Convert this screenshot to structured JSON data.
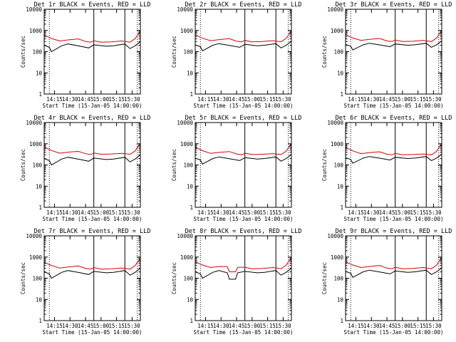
{
  "chart_data": [
    {
      "type": "line",
      "title": "Det 1r BLACK = Events, RED = LLD",
      "xlabel": "Start Time (15-Jan-05 14:00:00)",
      "ylabel": "Counts/sec",
      "yscale": "log",
      "ylim": [
        1,
        10000
      ],
      "xlim": [
        "14:05",
        "15:38"
      ],
      "xticks": [
        "14:15",
        "14:30",
        "14:45",
        "15:00",
        "15:15",
        "15:30"
      ],
      "yticks": [
        "1",
        "10",
        "100",
        "1000",
        "10000"
      ],
      "vertical_markers": {
        "dotted": [
          "14:10",
          "15:35"
        ],
        "solid": [
          "14:53",
          "15:23"
        ]
      },
      "series": [
        {
          "name": "Events",
          "color": "#000000",
          "x": [
            "14:05",
            "14:10",
            "14:12",
            "14:22",
            "14:28",
            "14:40",
            "14:48",
            "14:53",
            "15:05",
            "15:12",
            "15:23",
            "15:28",
            "15:33",
            "15:36",
            "15:38"
          ],
          "y": [
            200,
            160,
            100,
            190,
            230,
            180,
            150,
            210,
            180,
            190,
            230,
            140,
            190,
            250,
            300
          ]
        },
        {
          "name": "LLD",
          "color": "#dd0000",
          "x": [
            "14:05",
            "14:12",
            "14:20",
            "14:28",
            "14:38",
            "14:45",
            "14:50",
            "14:53",
            "15:00",
            "15:10",
            "15:20",
            "15:28",
            "15:33",
            "15:36",
            "15:38"
          ],
          "y": [
            600,
            420,
            320,
            360,
            400,
            300,
            280,
            330,
            280,
            290,
            320,
            280,
            420,
            700,
            900
          ]
        }
      ]
    },
    {
      "type": "line",
      "title": "Det 2r BLACK = Events, RED = LLD",
      "xlabel": "Start Time (15-Jan-05 14:00:00)",
      "ylabel": "Counts/sec",
      "yscale": "log",
      "ylim": [
        1,
        10000
      ],
      "xlim": [
        "14:05",
        "15:38"
      ],
      "xticks": [
        "14:15",
        "14:30",
        "14:45",
        "15:00",
        "15:15",
        "15:30"
      ],
      "yticks": [
        "1",
        "10",
        "100",
        "1000",
        "10000"
      ],
      "vertical_markers": {
        "dotted": [
          "14:10",
          "15:35"
        ],
        "solid": [
          "14:53",
          "15:23"
        ]
      },
      "series": [
        {
          "name": "Events",
          "color": "#000000",
          "x": [
            "14:05",
            "14:10",
            "14:12",
            "14:22",
            "14:28",
            "14:40",
            "14:48",
            "14:53",
            "15:05",
            "15:12",
            "15:23",
            "15:28",
            "15:33",
            "15:36",
            "15:38"
          ],
          "y": [
            210,
            170,
            110,
            200,
            240,
            190,
            160,
            220,
            190,
            200,
            240,
            150,
            200,
            260,
            310
          ]
        },
        {
          "name": "LLD",
          "color": "#dd0000",
          "x": [
            "14:05",
            "14:12",
            "14:20",
            "14:28",
            "14:38",
            "14:45",
            "14:50",
            "14:53",
            "15:00",
            "15:10",
            "15:20",
            "15:28",
            "15:33",
            "15:36",
            "15:38"
          ],
          "y": [
            620,
            430,
            330,
            370,
            410,
            310,
            290,
            340,
            290,
            300,
            330,
            290,
            430,
            720,
            920
          ]
        }
      ]
    },
    {
      "type": "line",
      "title": "Det 3r BLACK = Events, RED = LLD",
      "xlabel": "Start Time (15-Jan-05 14:00:00)",
      "ylabel": "Counts/sec",
      "yscale": "log",
      "ylim": [
        1,
        10000
      ],
      "xlim": [
        "14:05",
        "15:38"
      ],
      "xticks": [
        "14:15",
        "14:30",
        "14:45",
        "15:00",
        "15:15",
        "15:30"
      ],
      "yticks": [
        "1",
        "10",
        "100",
        "1000",
        "10000"
      ],
      "vertical_markers": {
        "dotted": [
          "14:10",
          "15:35"
        ],
        "solid": [
          "14:53",
          "15:23"
        ]
      },
      "series": [
        {
          "name": "Events",
          "color": "#000000",
          "x": [
            "14:05",
            "14:10",
            "14:12",
            "14:22",
            "14:28",
            "14:40",
            "14:48",
            "14:53",
            "15:05",
            "15:12",
            "15:23",
            "15:28",
            "15:33",
            "15:36",
            "15:38"
          ],
          "y": [
            220,
            180,
            120,
            210,
            250,
            200,
            170,
            230,
            200,
            210,
            250,
            160,
            210,
            270,
            320
          ]
        },
        {
          "name": "LLD",
          "color": "#dd0000",
          "x": [
            "14:05",
            "14:12",
            "14:20",
            "14:28",
            "14:38",
            "14:45",
            "14:50",
            "14:53",
            "15:00",
            "15:10",
            "15:20",
            "15:28",
            "15:33",
            "15:36",
            "15:38"
          ],
          "y": [
            640,
            440,
            340,
            380,
            420,
            320,
            300,
            350,
            300,
            310,
            340,
            300,
            440,
            740,
            940
          ]
        }
      ]
    },
    {
      "type": "line",
      "title": "Det 4r BLACK = Events, RED = LLD",
      "xlabel": "Start Time (15-Jan-05 14:00:00)",
      "ylabel": "Counts/sec",
      "yscale": "log",
      "ylim": [
        1,
        10000
      ],
      "xlim": [
        "14:05",
        "15:38"
      ],
      "xticks": [
        "14:15",
        "14:30",
        "14:45",
        "15:00",
        "15:15",
        "15:30"
      ],
      "yticks": [
        "1",
        "10",
        "100",
        "1000",
        "10000"
      ],
      "vertical_markers": {
        "dotted": [
          "14:10",
          "15:35"
        ],
        "solid": [
          "14:53",
          "15:23"
        ]
      },
      "series": [
        {
          "name": "Events",
          "color": "#000000",
          "x": [
            "14:05",
            "14:10",
            "14:12",
            "14:22",
            "14:28",
            "14:40",
            "14:48",
            "14:53",
            "15:05",
            "15:12",
            "15:23",
            "15:28",
            "15:33",
            "15:36",
            "15:38"
          ],
          "y": [
            200,
            160,
            100,
            190,
            230,
            180,
            150,
            210,
            180,
            190,
            230,
            140,
            190,
            250,
            300
          ]
        },
        {
          "name": "LLD",
          "color": "#dd0000",
          "x": [
            "14:05",
            "14:12",
            "14:20",
            "14:28",
            "14:38",
            "14:45",
            "14:50",
            "14:53",
            "15:00",
            "15:10",
            "15:20",
            "15:28",
            "15:33",
            "15:36",
            "15:38"
          ],
          "y": [
            700,
            480,
            360,
            400,
            440,
            340,
            310,
            370,
            320,
            330,
            350,
            320,
            460,
            800,
            1000
          ]
        }
      ]
    },
    {
      "type": "line",
      "title": "Det 5r BLACK = Events, RED = LLD",
      "xlabel": "Start Time (15-Jan-05 14:00:00)",
      "ylabel": "Counts/sec",
      "yscale": "log",
      "ylim": [
        1,
        10000
      ],
      "xlim": [
        "14:05",
        "15:38"
      ],
      "xticks": [
        "14:15",
        "14:30",
        "14:45",
        "15:00",
        "15:15",
        "15:30"
      ],
      "yticks": [
        "1",
        "10",
        "100",
        "1000",
        "10000"
      ],
      "vertical_markers": {
        "dotted": [
          "14:10",
          "15:35"
        ],
        "solid": [
          "14:53",
          "15:23"
        ]
      },
      "series": [
        {
          "name": "Events",
          "color": "#000000",
          "x": [
            "14:05",
            "14:10",
            "14:12",
            "14:22",
            "14:28",
            "14:40",
            "14:48",
            "14:53",
            "15:05",
            "15:12",
            "15:23",
            "15:28",
            "15:33",
            "15:36",
            "15:38"
          ],
          "y": [
            210,
            170,
            110,
            200,
            240,
            190,
            160,
            220,
            190,
            200,
            240,
            150,
            200,
            260,
            310
          ]
        },
        {
          "name": "LLD",
          "color": "#dd0000",
          "x": [
            "14:05",
            "14:12",
            "14:20",
            "14:28",
            "14:38",
            "14:45",
            "14:50",
            "14:53",
            "15:00",
            "15:10",
            "15:20",
            "15:28",
            "15:33",
            "15:36",
            "15:38"
          ],
          "y": [
            680,
            470,
            350,
            390,
            430,
            330,
            300,
            360,
            310,
            320,
            340,
            310,
            450,
            780,
            980
          ]
        }
      ]
    },
    {
      "type": "line",
      "title": "Det 6r BLACK = Events, RED = LLD",
      "xlabel": "Start Time (15-Jan-05 14:00:00)",
      "ylabel": "Counts/sec",
      "yscale": "log",
      "ylim": [
        1,
        10000
      ],
      "xlim": [
        "14:05",
        "15:38"
      ],
      "xticks": [
        "14:15",
        "14:30",
        "14:45",
        "15:00",
        "15:15",
        "15:30"
      ],
      "yticks": [
        "1",
        "10",
        "100",
        "1000",
        "10000"
      ],
      "vertical_markers": {
        "dotted": [
          "14:10",
          "15:35"
        ],
        "solid": [
          "14:53",
          "15:23"
        ]
      },
      "series": [
        {
          "name": "Events",
          "color": "#000000",
          "x": [
            "14:05",
            "14:10",
            "14:12",
            "14:22",
            "14:28",
            "14:40",
            "14:48",
            "14:53",
            "15:05",
            "15:12",
            "15:23",
            "15:28",
            "15:33",
            "15:36",
            "15:38"
          ],
          "y": [
            220,
            180,
            120,
            210,
            250,
            200,
            170,
            230,
            200,
            210,
            250,
            160,
            210,
            270,
            320
          ]
        },
        {
          "name": "LLD",
          "color": "#dd0000",
          "x": [
            "14:05",
            "14:12",
            "14:20",
            "14:28",
            "14:38",
            "14:45",
            "14:50",
            "14:53",
            "15:00",
            "15:10",
            "15:20",
            "15:28",
            "15:33",
            "15:36",
            "15:38"
          ],
          "y": [
            660,
            460,
            340,
            380,
            420,
            320,
            300,
            350,
            300,
            310,
            330,
            300,
            440,
            760,
            960
          ]
        }
      ]
    },
    {
      "type": "line",
      "title": "Det 7r BLACK = Events, RED = LLD",
      "xlabel": "Start Time (15-Jan-05 14:00:00)",
      "ylabel": "Counts/sec",
      "yscale": "log",
      "ylim": [
        1,
        10000
      ],
      "xlim": [
        "14:05",
        "15:38"
      ],
      "xticks": [
        "14:15",
        "14:30",
        "14:45",
        "15:00",
        "15:15",
        "15:30"
      ],
      "yticks": [
        "1",
        "10",
        "100",
        "1000",
        "10000"
      ],
      "vertical_markers": {
        "dotted": [
          "14:10",
          "15:35"
        ],
        "solid": [
          "14:53",
          "15:23"
        ]
      },
      "series": [
        {
          "name": "Events",
          "color": "#000000",
          "x": [
            "14:05",
            "14:10",
            "14:12",
            "14:22",
            "14:28",
            "14:40",
            "14:48",
            "14:53",
            "15:05",
            "15:12",
            "15:23",
            "15:28",
            "15:33",
            "15:36",
            "15:38"
          ],
          "y": [
            200,
            160,
            100,
            190,
            230,
            180,
            150,
            210,
            180,
            190,
            230,
            140,
            190,
            250,
            300
          ]
        },
        {
          "name": "LLD",
          "color": "#dd0000",
          "x": [
            "14:05",
            "14:12",
            "14:20",
            "14:28",
            "14:38",
            "14:45",
            "14:50",
            "14:53",
            "15:00",
            "15:10",
            "15:20",
            "15:28",
            "15:33",
            "15:36",
            "15:38"
          ],
          "y": [
            560,
            400,
            300,
            340,
            380,
            290,
            270,
            320,
            270,
            280,
            300,
            270,
            400,
            650,
            850
          ]
        }
      ]
    },
    {
      "type": "line",
      "title": "Det 8r BLACK = Events, RED = LLD",
      "xlabel": "Start Time (15-Jan-05 14:00:00)",
      "ylabel": "Counts/sec",
      "yscale": "log",
      "ylim": [
        1,
        10000
      ],
      "xlim": [
        "14:05",
        "15:38"
      ],
      "xticks": [
        "14:15",
        "14:30",
        "14:45",
        "15:00",
        "15:15",
        "15:30"
      ],
      "yticks": [
        "1",
        "10",
        "100",
        "1000",
        "10000"
      ],
      "vertical_markers": {
        "dotted": [
          "14:10",
          "15:35"
        ],
        "solid": [
          "14:53",
          "15:23"
        ]
      },
      "series": [
        {
          "name": "Events",
          "color": "#000000",
          "x": [
            "14:05",
            "14:10",
            "14:12",
            "14:22",
            "14:28",
            "14:36",
            "14:38",
            "14:44",
            "14:46",
            "14:53",
            "15:05",
            "15:12",
            "15:23",
            "15:28",
            "15:33",
            "15:36",
            "15:38"
          ],
          "y": [
            200,
            160,
            100,
            190,
            230,
            180,
            90,
            90,
            180,
            210,
            180,
            190,
            230,
            140,
            190,
            250,
            300
          ]
        },
        {
          "name": "LLD",
          "color": "#dd0000",
          "x": [
            "14:05",
            "14:12",
            "14:20",
            "14:28",
            "14:36",
            "14:38",
            "14:44",
            "14:46",
            "14:53",
            "15:00",
            "15:10",
            "15:20",
            "15:28",
            "15:33",
            "15:36",
            "15:38"
          ],
          "y": [
            600,
            420,
            320,
            360,
            350,
            200,
            200,
            330,
            330,
            280,
            290,
            320,
            280,
            420,
            700,
            900
          ]
        }
      ]
    },
    {
      "type": "line",
      "title": "Det 9r BLACK = Events, RED = LLD",
      "xlabel": "Start Time (15-Jan-05 14:00:00)",
      "ylabel": "Counts/sec",
      "yscale": "log",
      "ylim": [
        1,
        10000
      ],
      "xlim": [
        "14:05",
        "15:38"
      ],
      "xticks": [
        "14:15",
        "14:30",
        "14:45",
        "15:00",
        "15:15",
        "15:30"
      ],
      "yticks": [
        "1",
        "10",
        "100",
        "1000",
        "10000"
      ],
      "vertical_markers": {
        "dotted": [
          "14:10",
          "15:35"
        ],
        "solid": [
          "14:53",
          "15:23"
        ]
      },
      "series": [
        {
          "name": "Events",
          "color": "#000000",
          "x": [
            "14:05",
            "14:10",
            "14:12",
            "14:22",
            "14:28",
            "14:40",
            "14:48",
            "14:53",
            "15:05",
            "15:12",
            "15:23",
            "15:28",
            "15:33",
            "15:36",
            "15:38"
          ],
          "y": [
            210,
            170,
            110,
            200,
            240,
            190,
            160,
            220,
            190,
            200,
            240,
            150,
            200,
            260,
            310
          ]
        },
        {
          "name": "LLD",
          "color": "#dd0000",
          "x": [
            "14:05",
            "14:12",
            "14:20",
            "14:28",
            "14:38",
            "14:45",
            "14:50",
            "14:53",
            "15:00",
            "15:10",
            "15:20",
            "15:28",
            "15:33",
            "15:36",
            "15:38"
          ],
          "y": [
            600,
            420,
            320,
            360,
            400,
            300,
            280,
            330,
            280,
            290,
            320,
            280,
            420,
            700,
            900
          ]
        }
      ]
    }
  ]
}
